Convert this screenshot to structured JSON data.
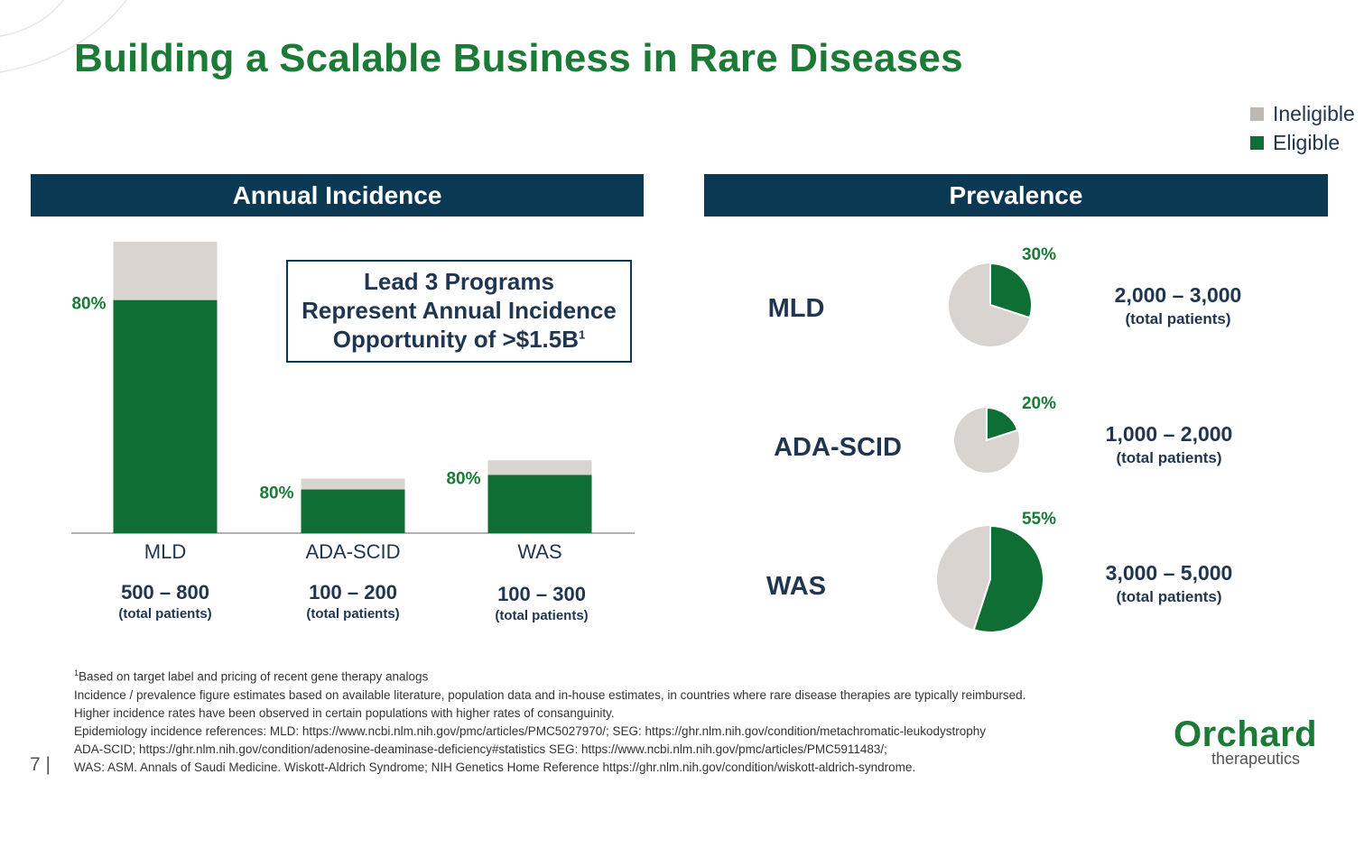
{
  "title": "Building a Scalable Business in Rare Diseases",
  "legend": [
    {
      "label": "Ineligible",
      "color": "#d9d4cf"
    },
    {
      "label": "Eligible",
      "color": "#0e6e33"
    }
  ],
  "sections": {
    "left_header": "Annual Incidence",
    "right_header": "Prevalence"
  },
  "callout": {
    "line1": "Lead 3 Programs",
    "line2": "Represent Annual Incidence",
    "line3": "Opportunity of >$1.5B",
    "footnote_mark": "1"
  },
  "colors": {
    "eligible": "#0e6e33",
    "ineligible": "#d9d4cf",
    "accent": "#1a7a36",
    "navy": "#0b3954"
  },
  "chart_data": [
    {
      "type": "bar",
      "title": "Annual Incidence",
      "categories": [
        "MLD",
        "ADA-SCID",
        "WAS"
      ],
      "series": [
        {
          "name": "Eligible",
          "values": [
            640,
            120,
            160
          ]
        },
        {
          "name": "Ineligible",
          "values": [
            160,
            30,
            40
          ]
        }
      ],
      "bar_labels": [
        "80%",
        "80%",
        "80%"
      ],
      "range_labels": [
        "500 – 800",
        "100 – 200",
        "100 – 300"
      ],
      "range_sub": [
        "(total patients)",
        "(total patients)",
        "(total patients)"
      ],
      "ylim": [
        0,
        800
      ],
      "grid": false
    },
    {
      "type": "pie",
      "title": "Prevalence",
      "items": [
        {
          "label": "MLD",
          "eligible_fraction": 0.3,
          "pct_label": "30%",
          "range": "2,000 – 3,000",
          "sub": "(total patients)"
        },
        {
          "label": "ADA-SCID",
          "eligible_fraction": 0.2,
          "pct_label": "20%",
          "range": "1,000 – 2,000",
          "sub": "(total patients)"
        },
        {
          "label": "WAS",
          "eligible_fraction": 0.55,
          "pct_label": "55%",
          "range": "3,000 – 5,000",
          "sub": "(total patients)"
        }
      ]
    }
  ],
  "footnotes": {
    "mark": "1",
    "line1": "Based on target label and pricing of recent gene therapy analogs",
    "line2": "Incidence / prevalence figure estimates based on available literature, population data and in-house estimates, in countries where rare disease therapies are typically reimbursed.",
    "line3": "Higher incidence rates have been observed in certain populations with higher rates of consanguinity.",
    "line4": "Epidemiology incidence references: MLD: https://www.ncbi.nlm.nih.gov/pmc/articles/PMC5027970/; SEG: https://ghr.nlm.nih.gov/condition/metachromatic-leukodystrophy",
    "line5": "ADA-SCID; https://ghr.nlm.nih.gov/condition/adenosine-deaminase-deficiency#statistics SEG: https://www.ncbi.nlm.nih.gov/pmc/articles/PMC5911483/;",
    "line6": "WAS: ASM. Annals of Saudi Medicine. Wiskott-Aldrich Syndrome; NIH Genetics Home Reference https://ghr.nlm.nih.gov/condition/wiskott-aldrich-syndrome."
  },
  "page_number": "7 |",
  "logo": {
    "name": "Orchard",
    "sub": "therapeutics"
  }
}
